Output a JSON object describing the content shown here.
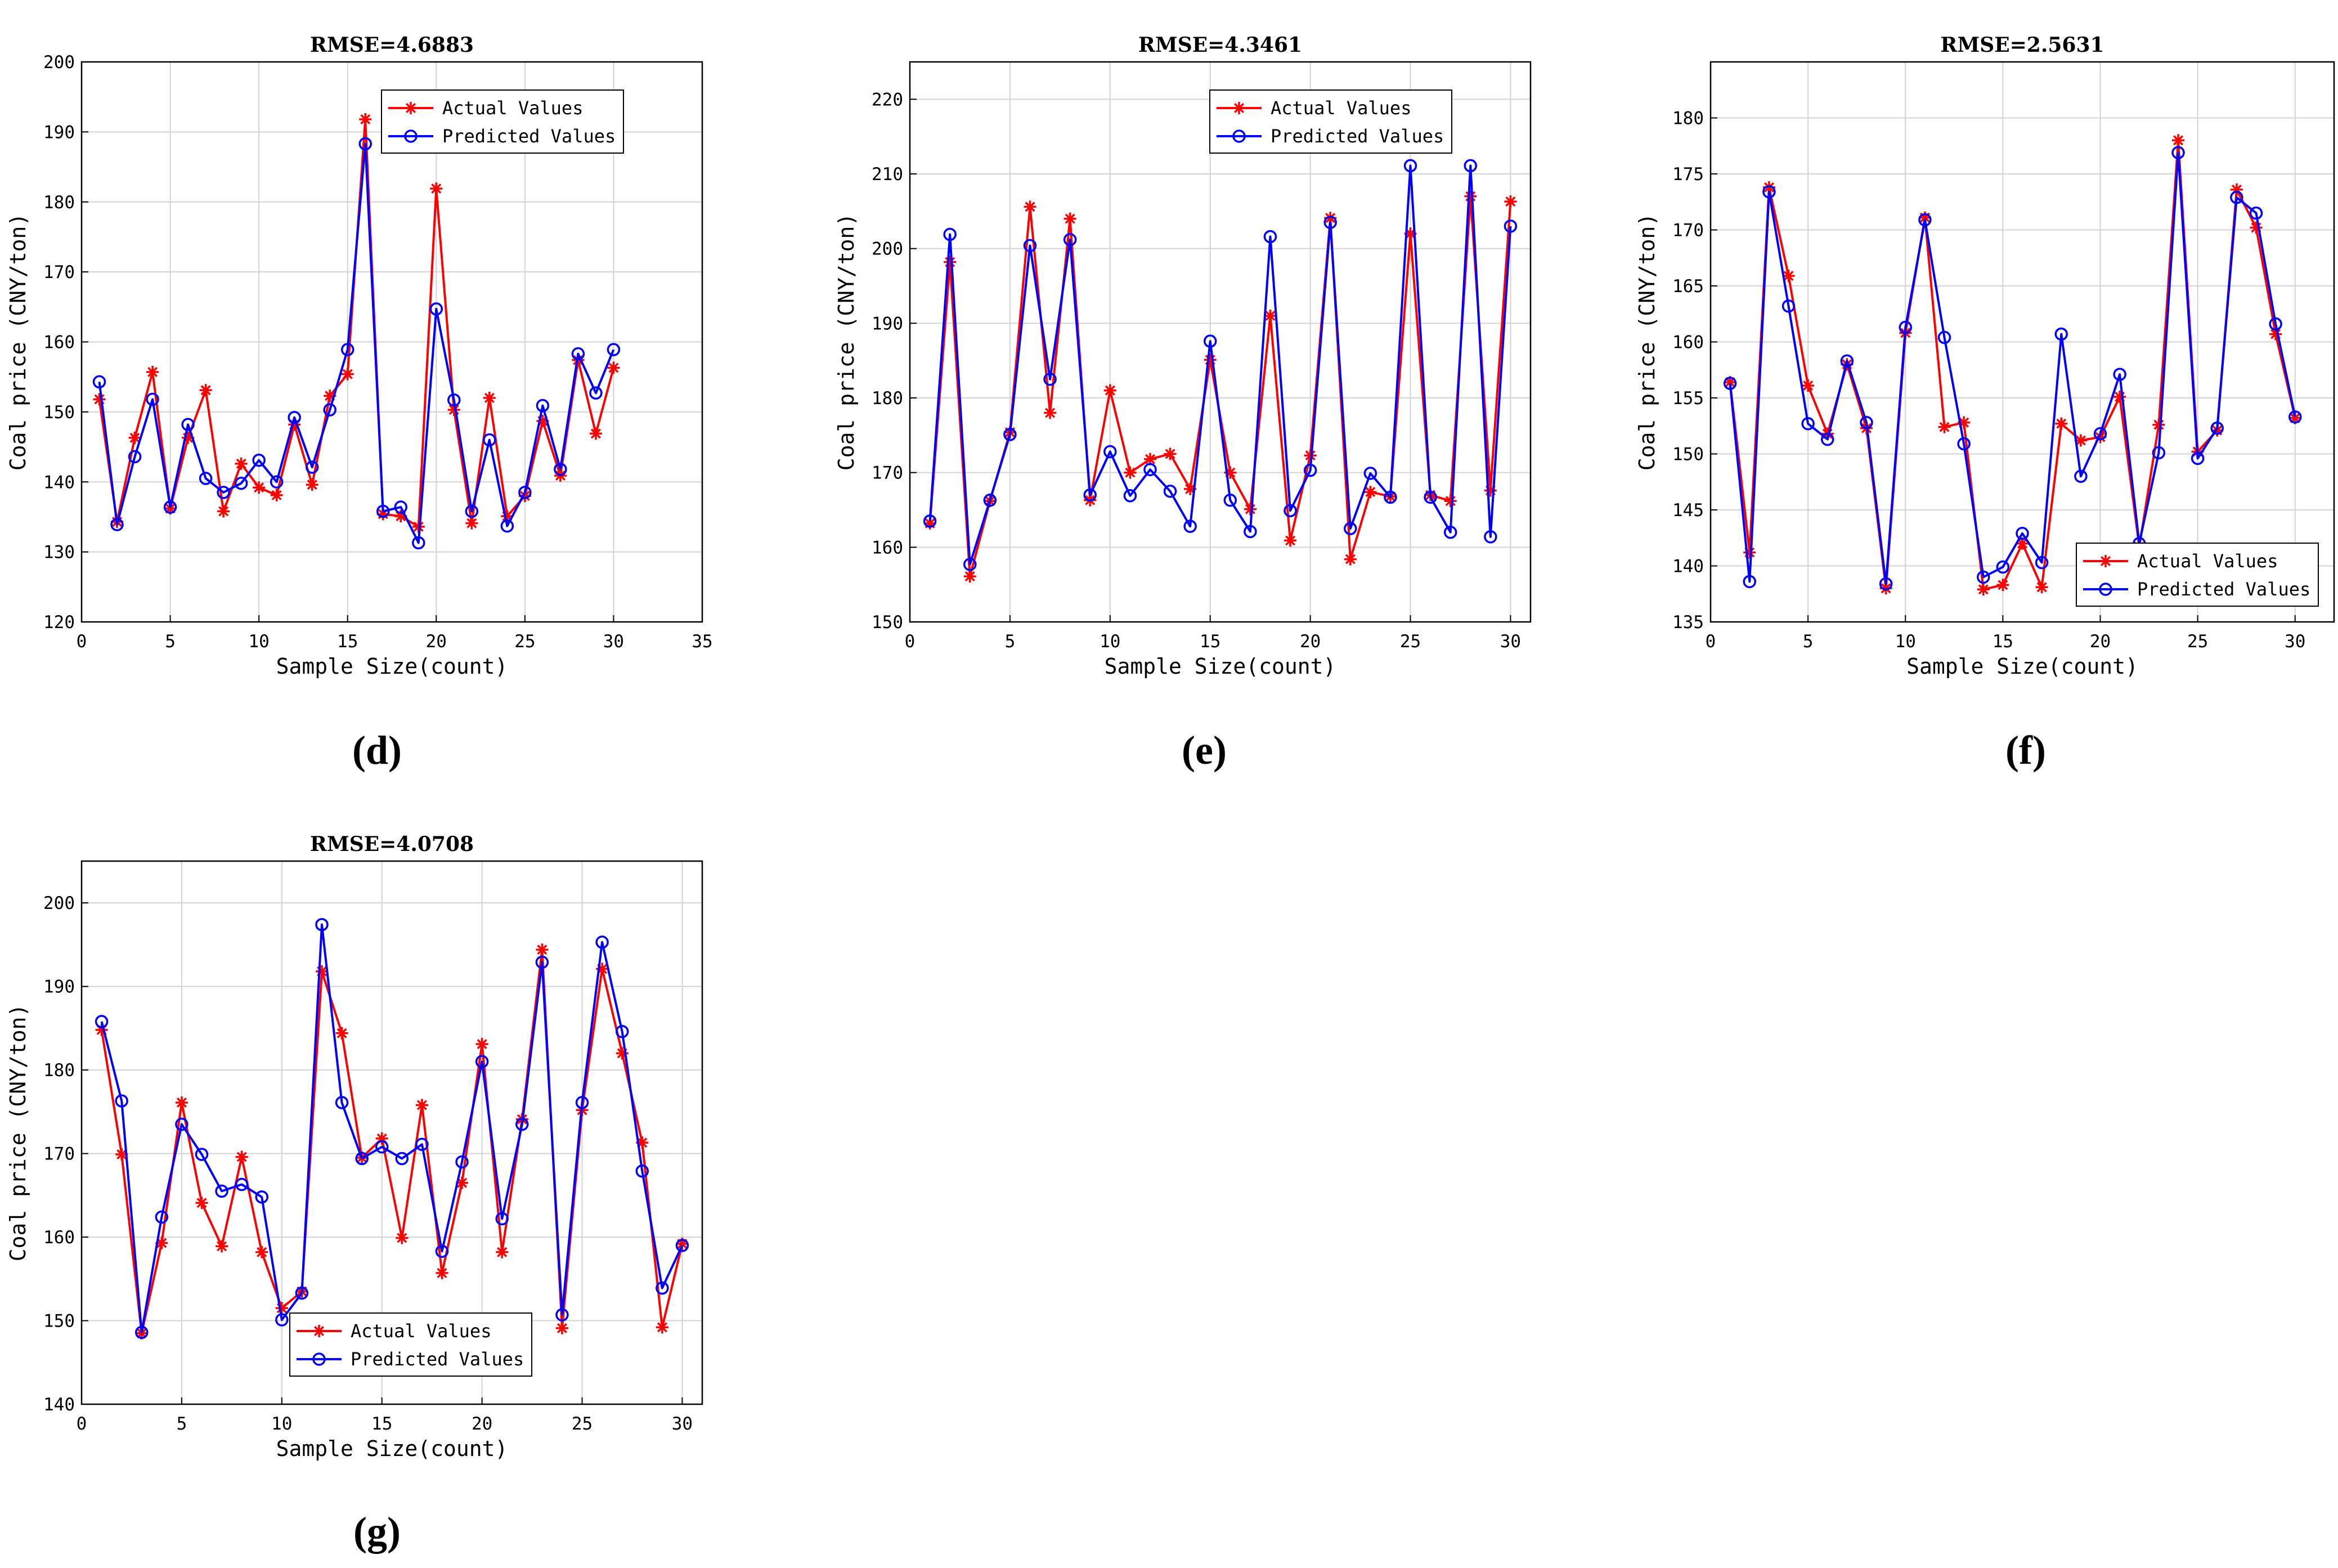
{
  "colors": {
    "actual": "#ff0000",
    "predicted": "#0000ff",
    "grid": "#d3d3d3",
    "axis": "#000000"
  },
  "chart_data": [
    {
      "panel": "d",
      "caption_letter": "d",
      "type": "line",
      "title": "RMSE=4.6883",
      "xlabel": "Sample Size(count)",
      "ylabel": "Coal price (CNY/ton)",
      "xlim": [
        0,
        35
      ],
      "ylim": [
        120,
        200
      ],
      "xticks": [
        0,
        5,
        10,
        15,
        20,
        25,
        30,
        35
      ],
      "yticks": [
        120,
        130,
        140,
        150,
        160,
        170,
        180,
        190,
        200
      ],
      "legend_location": "top-right",
      "x": [
        1,
        2,
        3,
        4,
        5,
        6,
        7,
        8,
        9,
        10,
        11,
        12,
        13,
        14,
        15,
        16,
        17,
        18,
        19,
        20,
        21,
        22,
        23,
        24,
        25,
        26,
        27,
        28,
        29,
        30
      ],
      "series": [
        {
          "name": "Actual Values",
          "marker": "star",
          "values": [
            151.8,
            134.3,
            146.3,
            155.7,
            136.2,
            146.3,
            153.1,
            135.8,
            142.6,
            139.2,
            138.1,
            148.2,
            139.6,
            152.3,
            155.4,
            191.8,
            135.4,
            135.1,
            133.6,
            181.9,
            150.3,
            134.1,
            152.0,
            135.1,
            138.0,
            148.7,
            140.9,
            157.4,
            146.9,
            156.3
          ]
        },
        {
          "name": "Predicted Values",
          "marker": "circle",
          "values": [
            154.3,
            133.9,
            143.6,
            151.8,
            136.4,
            148.2,
            140.5,
            138.5,
            139.8,
            143.1,
            140.0,
            149.2,
            142.1,
            150.3,
            158.9,
            188.3,
            135.8,
            136.4,
            131.3,
            164.7,
            151.7,
            135.8,
            146.0,
            133.7,
            138.5,
            150.9,
            141.8,
            158.3,
            152.7,
            158.9
          ]
        }
      ]
    },
    {
      "panel": "e",
      "caption_letter": "e",
      "type": "line",
      "title": "RMSE=4.3461",
      "xlabel": "Sample Size(count)",
      "ylabel": "Coal price (CNY/ton)",
      "xlim": [
        0,
        31
      ],
      "ylim": [
        150,
        225
      ],
      "xticks": [
        0,
        5,
        10,
        15,
        20,
        25,
        30
      ],
      "yticks": [
        150,
        160,
        170,
        180,
        190,
        200,
        210,
        220
      ],
      "legend_location": "top-right",
      "x": [
        1,
        2,
        3,
        4,
        5,
        6,
        7,
        8,
        9,
        10,
        11,
        12,
        13,
        14,
        15,
        16,
        17,
        18,
        19,
        20,
        21,
        22,
        23,
        24,
        25,
        26,
        27,
        28,
        29,
        30
      ],
      "series": [
        {
          "name": "Actual Values",
          "marker": "star",
          "values": [
            163.2,
            198.2,
            156.1,
            166.2,
            175.4,
            205.6,
            178.0,
            204.0,
            166.3,
            181.0,
            170.0,
            171.8,
            172.5,
            167.8,
            185.1,
            170.0,
            165.1,
            191.0,
            160.9,
            172.3,
            204.1,
            158.4,
            167.4,
            166.8,
            202.0,
            167.0,
            166.2,
            207.0,
            167.6,
            206.3
          ]
        },
        {
          "name": "Predicted Values",
          "marker": "circle",
          "values": [
            163.5,
            201.9,
            157.7,
            166.3,
            175.1,
            200.4,
            182.5,
            201.2,
            167.0,
            172.8,
            166.9,
            170.4,
            167.5,
            162.8,
            187.6,
            166.3,
            162.1,
            201.6,
            164.9,
            170.3,
            203.5,
            162.5,
            169.9,
            166.7,
            211.1,
            166.7,
            162.0,
            211.1,
            161.4,
            203.0
          ]
        }
      ]
    },
    {
      "panel": "f",
      "caption_letter": "f",
      "type": "line",
      "title": "RMSE=2.5631",
      "xlabel": "Sample Size(count)",
      "ylabel": "Coal price (CNY/ton)",
      "xlim": [
        0,
        32
      ],
      "ylim": [
        135,
        185
      ],
      "xticks": [
        0,
        5,
        10,
        15,
        20,
        25,
        30
      ],
      "yticks": [
        135,
        140,
        145,
        150,
        155,
        160,
        165,
        170,
        175,
        180
      ],
      "legend_location": "bottom-right",
      "x": [
        1,
        2,
        3,
        4,
        5,
        6,
        7,
        8,
        9,
        10,
        11,
        12,
        13,
        14,
        15,
        16,
        17,
        18,
        19,
        20,
        21,
        22,
        23,
        24,
        25,
        26,
        27,
        28,
        29,
        30
      ],
      "series": [
        {
          "name": "Actual Values",
          "marker": "star",
          "values": [
            156.4,
            141.2,
            173.8,
            165.9,
            156.1,
            151.8,
            158.0,
            152.3,
            138.0,
            160.8,
            171.1,
            152.4,
            152.8,
            137.9,
            138.3,
            142.0,
            138.1,
            152.7,
            151.2,
            151.5,
            155.1,
            141.7,
            152.6,
            178.0,
            150.2,
            152.1,
            173.6,
            170.2,
            160.7,
            153.2
          ]
        },
        {
          "name": "Predicted Values",
          "marker": "circle",
          "values": [
            156.3,
            138.6,
            173.4,
            163.2,
            152.7,
            151.3,
            158.3,
            152.8,
            138.4,
            161.3,
            170.9,
            160.4,
            150.9,
            139.0,
            139.9,
            142.9,
            140.3,
            160.7,
            148.0,
            151.8,
            157.1,
            142.0,
            150.1,
            176.9,
            149.6,
            152.3,
            172.9,
            171.5,
            161.6,
            153.3
          ]
        }
      ]
    },
    {
      "panel": "g",
      "caption_letter": "g",
      "type": "line",
      "title": "RMSE=4.0708",
      "xlabel": "Sample Size(count)",
      "ylabel": "Coal price (CNY/ton)",
      "xlim": [
        0,
        31
      ],
      "ylim": [
        140,
        205
      ],
      "xticks": [
        0,
        5,
        10,
        15,
        20,
        25,
        30
      ],
      "yticks": [
        140,
        150,
        160,
        170,
        180,
        190,
        200
      ],
      "legend_location": "bottom-center",
      "x": [
        1,
        2,
        3,
        4,
        5,
        6,
        7,
        8,
        9,
        10,
        11,
        12,
        13,
        14,
        15,
        16,
        17,
        18,
        19,
        20,
        21,
        22,
        23,
        24,
        25,
        26,
        27,
        28,
        29,
        30
      ],
      "series": [
        {
          "name": "Actual Values",
          "marker": "star",
          "values": [
            184.8,
            169.9,
            148.5,
            159.3,
            176.1,
            164.1,
            158.9,
            169.6,
            158.2,
            151.5,
            153.5,
            191.8,
            184.4,
            169.5,
            171.8,
            159.9,
            175.8,
            155.7,
            166.5,
            183.1,
            158.2,
            174.1,
            194.4,
            149.1,
            175.2,
            192.1,
            182.0,
            171.3,
            149.2,
            159.2
          ]
        },
        {
          "name": "Predicted Values",
          "marker": "circle",
          "values": [
            185.8,
            176.3,
            148.6,
            162.4,
            173.5,
            169.9,
            165.5,
            166.3,
            164.8,
            150.1,
            153.3,
            197.4,
            176.1,
            169.4,
            170.8,
            169.4,
            171.1,
            158.3,
            169.0,
            181.0,
            162.2,
            173.5,
            192.9,
            150.7,
            176.1,
            195.3,
            184.6,
            167.9,
            153.9,
            159.0
          ]
        }
      ]
    }
  ]
}
